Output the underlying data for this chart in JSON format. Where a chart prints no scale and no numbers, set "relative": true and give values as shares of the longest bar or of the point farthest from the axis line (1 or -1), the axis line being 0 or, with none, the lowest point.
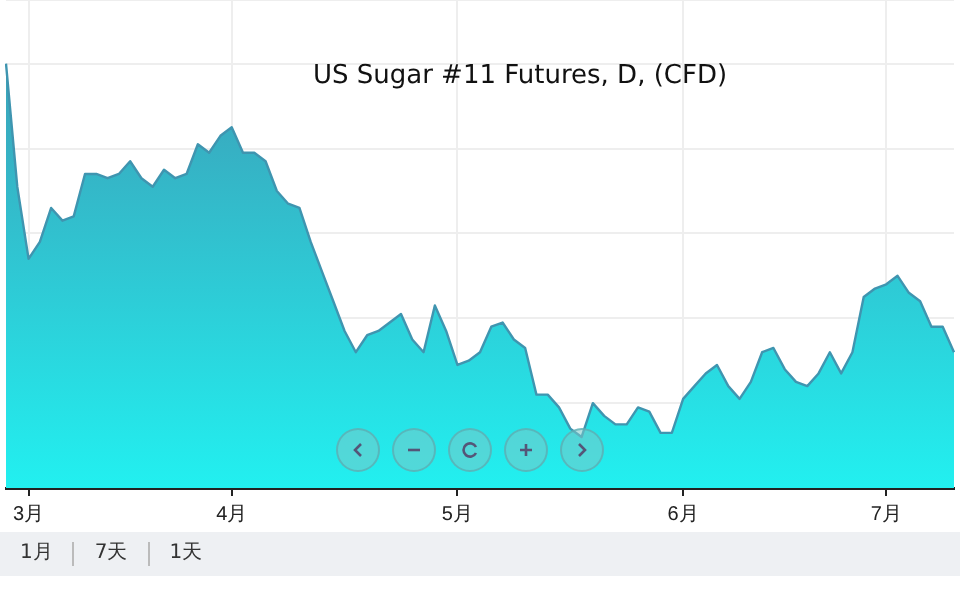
{
  "chart_data": {
    "type": "area",
    "title": "US Sugar #11 Futures, D, (CFD)",
    "relative": true,
    "grid": true,
    "legend": false,
    "categories": [
      null,
      null,
      "3月",
      null,
      null,
      null,
      null,
      null,
      null,
      null,
      null,
      null,
      null,
      null,
      null,
      null,
      null,
      null,
      null,
      null,
      "4月",
      null,
      null,
      null,
      null,
      null,
      null,
      null,
      null,
      null,
      null,
      null,
      null,
      null,
      null,
      null,
      null,
      null,
      null,
      null,
      "5月",
      null,
      null,
      null,
      null,
      null,
      null,
      null,
      null,
      null,
      null,
      null,
      null,
      null,
      null,
      null,
      null,
      null,
      null,
      null,
      "6月",
      null,
      null,
      null,
      null,
      null,
      null,
      null,
      null,
      null,
      null,
      null,
      null,
      null,
      null,
      null,
      null,
      null,
      "7月",
      null,
      null,
      null,
      null,
      null,
      null
    ],
    "series": [
      {
        "color": "#3f95b0",
        "values": [
          1.0,
          0.71,
          0.54,
          0.58,
          0.66,
          0.63,
          0.64,
          0.74,
          0.74,
          0.73,
          0.74,
          0.77,
          0.73,
          0.71,
          0.75,
          0.73,
          0.74,
          0.81,
          0.79,
          0.83,
          0.85,
          0.79,
          0.79,
          0.77,
          0.7,
          0.67,
          0.66,
          0.58,
          0.51,
          0.44,
          0.37,
          0.32,
          0.36,
          0.37,
          0.39,
          0.41,
          0.35,
          0.32,
          0.43,
          0.37,
          0.29,
          0.3,
          0.32,
          0.38,
          0.39,
          0.35,
          0.33,
          0.22,
          0.22,
          0.19,
          0.14,
          0.12,
          0.2,
          0.17,
          0.15,
          0.15,
          0.19,
          0.18,
          0.13,
          0.13,
          0.21,
          0.24,
          0.27,
          0.29,
          0.24,
          0.21,
          0.25,
          0.32,
          0.33,
          0.28,
          0.25,
          0.24,
          0.27,
          0.32,
          0.27,
          0.32,
          0.45,
          0.47,
          0.48,
          0.5,
          0.46,
          0.44,
          0.38,
          0.38,
          0.32
        ]
      }
    ],
    "annotations": [
      "1月",
      "7天",
      "1天"
    ]
  }
}
